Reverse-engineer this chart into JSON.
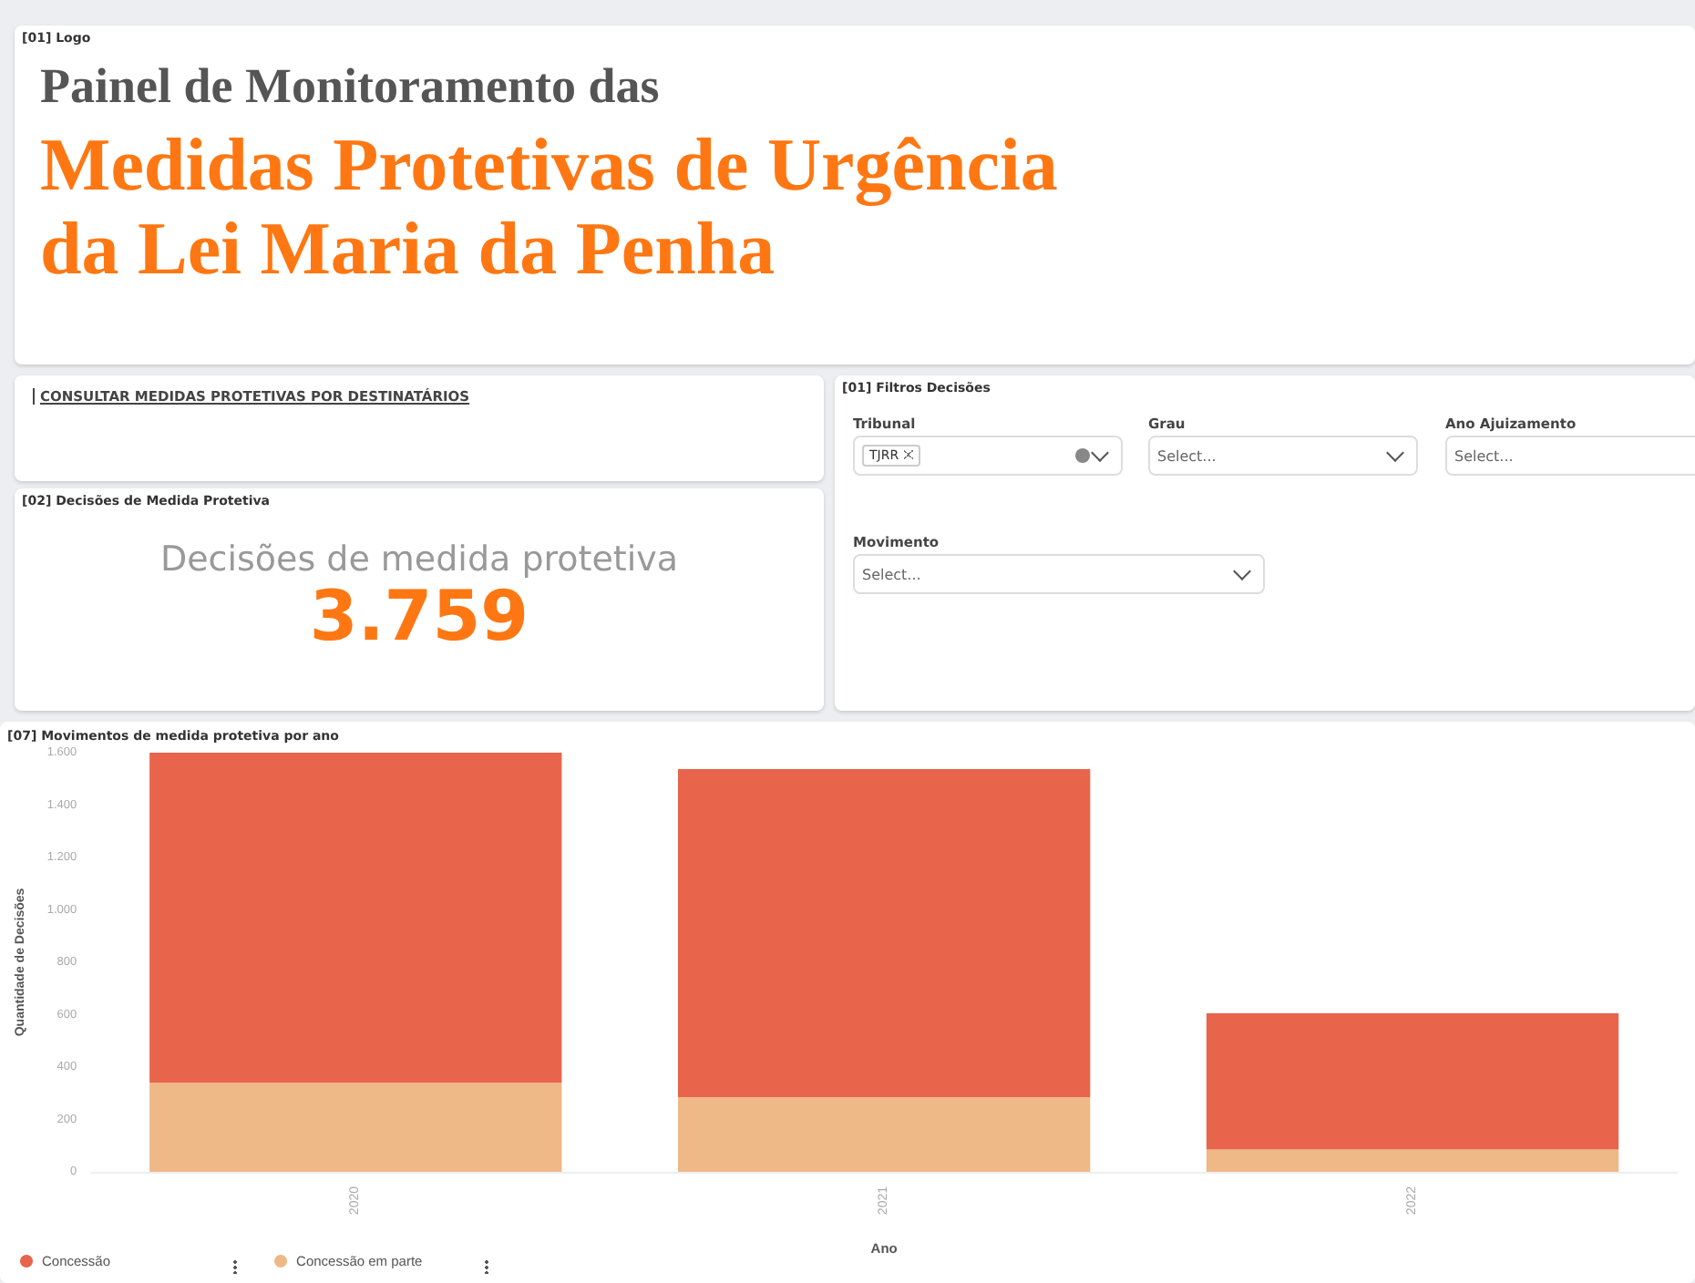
{
  "chart_data": [
    {
      "type": "other",
      "title": "[01] Logo",
      "annotations": [
        "Painel de Monitoramento das",
        "Medidas Protetivas de Urgência",
        "da Lei Maria da Penha"
      ]
    },
    {
      "type": "other",
      "annotations": [
        "CONSULTAR MEDIDAS PROTETIVAS POR DESTINATÁRIOS"
      ]
    },
    {
      "type": "other",
      "title": "[02] Decisões de Medida Protetiva",
      "subtitle": "Decisões de medida protetiva",
      "annotations": [
        "3.759"
      ]
    },
    {
      "type": "other",
      "title": "[01] Filtros Decisões",
      "annotations": [
        "Tribunal",
        "TJRR",
        "Grau",
        "Select...",
        "Ano Ajuizamento",
        "Select...",
        "Movimento",
        "Select..."
      ]
    },
    {
      "type": "bar",
      "title": "[07] Movimentos de medida protetiva por ano",
      "xlabel": "Ano",
      "ylabel": "Quantidade de Decisões",
      "categories": [
        "2020",
        "2021",
        "2022"
      ],
      "stacked": true,
      "series": [
        {
          "name": "Concessão em parte",
          "color": "#efb887",
          "values": [
            340,
            285,
            85
          ]
        },
        {
          "name": "Concessão",
          "color": "#e8654b",
          "values": [
            1260,
            1252,
            520
          ]
        }
      ],
      "ylim": [
        0,
        1600
      ],
      "yticks": [
        0,
        200,
        400,
        600,
        800,
        {
          "value": 1000,
          "label": "1.000"
        },
        {
          "value": 1200,
          "label": "1.200"
        },
        {
          "value": 1400,
          "label": "1.400"
        },
        {
          "value": 1600,
          "label": "1.600"
        }
      ],
      "legend": "bottom left"
    }
  ]
}
